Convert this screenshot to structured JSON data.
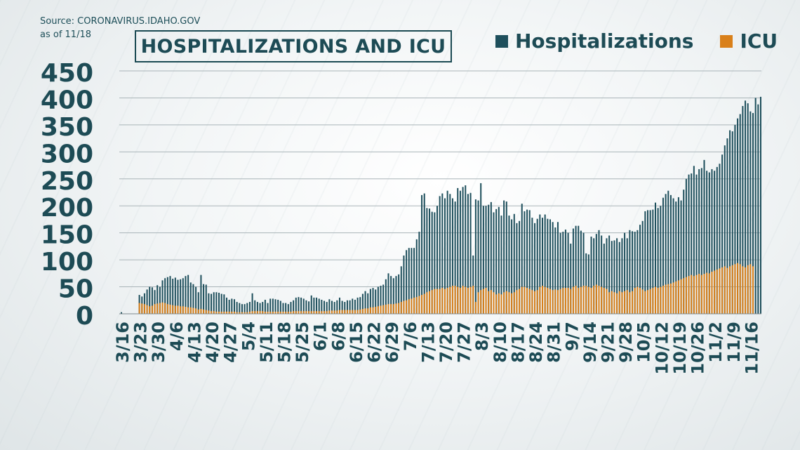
{
  "source": {
    "line1": "Source: CORONAVIRUS.IDAHO.GOV",
    "line2": "as of 11/18"
  },
  "colors": {
    "hospitalizations": "#1e4f5c",
    "icu": "#d9801a",
    "grid": "#a9b4b8",
    "axis_text": "#1d4b55"
  },
  "chart_data": {
    "type": "bar",
    "title": "HOSPITALIZATIONS AND ICU",
    "legend_position": "top-right",
    "grid": true,
    "ylim": [
      0,
      450
    ],
    "yticks": [
      0,
      50,
      100,
      150,
      200,
      250,
      300,
      350,
      400,
      450
    ],
    "xtick_labels": [
      "3/16",
      "3/23",
      "3/30",
      "4/6",
      "4/13",
      "4/20",
      "4/27",
      "5/4",
      "5/11",
      "5/18",
      "5/25",
      "6/1",
      "6/8",
      "6/15",
      "6/22",
      "6/29",
      "7/6",
      "7/13",
      "7/20",
      "7/27",
      "8/3",
      "8/10",
      "8/17",
      "8/24",
      "8/31",
      "9/7",
      "9/14",
      "9/21",
      "9/28",
      "10/5",
      "10/12",
      "10/19",
      "10/26",
      "11/2",
      "11/9",
      "11/16"
    ],
    "start_date": "3/16",
    "end_date": "11/17",
    "series": [
      {
        "name": "Hospitalizations",
        "values": [
          3,
          0,
          0,
          0,
          0,
          0,
          0,
          35,
          32,
          38,
          45,
          50,
          49,
          44,
          53,
          50,
          62,
          66,
          68,
          70,
          65,
          67,
          63,
          64,
          66,
          70,
          72,
          58,
          55,
          50,
          40,
          72,
          55,
          54,
          38,
          37,
          40,
          40,
          39,
          37,
          36,
          30,
          26,
          28,
          27,
          22,
          20,
          18,
          18,
          20,
          22,
          38,
          25,
          22,
          20,
          22,
          26,
          20,
          28,
          28,
          27,
          26,
          24,
          20,
          20,
          18,
          22,
          25,
          30,
          31,
          30,
          28,
          25,
          23,
          34,
          30,
          30,
          28,
          26,
          24,
          22,
          27,
          24,
          22,
          25,
          30,
          24,
          22,
          25,
          25,
          28,
          26,
          30,
          31,
          37,
          42,
          38,
          46,
          48,
          45,
          50,
          52,
          54,
          64,
          75,
          70,
          66,
          70,
          73,
          88,
          108,
          118,
          122,
          122,
          122,
          138,
          152,
          220,
          223,
          196,
          195,
          189,
          188,
          200,
          218,
          223,
          214,
          228,
          222,
          214,
          208,
          233,
          228,
          235,
          238,
          222,
          224,
          108,
          212,
          210,
          242,
          200,
          200,
          202,
          207,
          188,
          194,
          198,
          182,
          210,
          208,
          182,
          175,
          185,
          168,
          172,
          204,
          190,
          193,
          192,
          178,
          168,
          176,
          184,
          178,
          184,
          176,
          175,
          170,
          160,
          170,
          150,
          152,
          156,
          150,
          130,
          158,
          163,
          163,
          154,
          150,
          112,
          110,
          143,
          140,
          148,
          155,
          145,
          130,
          140,
          145,
          135,
          136,
          140,
          133,
          140,
          150,
          140,
          155,
          153,
          152,
          155,
          165,
          172,
          190,
          192,
          192,
          193,
          206,
          196,
          200,
          215,
          222,
          228,
          220,
          214,
          208,
          216,
          210,
          230,
          250,
          258,
          260,
          274,
          258,
          268,
          270,
          285,
          265,
          262,
          268,
          265,
          272,
          278,
          295,
          312,
          325,
          340,
          338,
          350,
          362,
          370,
          385,
          395,
          390,
          375,
          372,
          400,
          388,
          402
        ]
      },
      {
        "name": "ICU",
        "values": [
          0,
          0,
          0,
          0,
          0,
          0,
          0,
          20,
          19,
          18,
          16,
          14,
          15,
          18,
          19,
          20,
          21,
          20,
          18,
          17,
          16,
          15,
          15,
          14,
          14,
          13,
          12,
          12,
          11,
          10,
          8,
          9,
          8,
          7,
          6,
          5,
          5,
          4,
          4,
          4,
          4,
          4,
          4,
          4,
          4,
          3,
          3,
          3,
          3,
          3,
          4,
          5,
          5,
          5,
          5,
          5,
          4,
          4,
          4,
          4,
          4,
          4,
          4,
          4,
          4,
          4,
          4,
          5,
          5,
          5,
          5,
          5,
          5,
          5,
          5,
          5,
          5,
          5,
          5,
          5,
          5,
          6,
          6,
          6,
          6,
          7,
          7,
          7,
          7,
          7,
          7,
          7,
          7,
          8,
          9,
          10,
          10,
          12,
          12,
          13,
          14,
          15,
          16,
          17,
          18,
          18,
          18,
          19,
          20,
          22,
          24,
          25,
          27,
          28,
          30,
          31,
          33,
          35,
          37,
          40,
          42,
          44,
          46,
          46,
          46,
          48,
          46,
          48,
          50,
          52,
          52,
          50,
          48,
          52,
          50,
          48,
          50,
          52,
          22,
          40,
          44,
          46,
          48,
          42,
          44,
          40,
          36,
          38,
          36,
          40,
          42,
          40,
          38,
          40,
          44,
          46,
          50,
          50,
          48,
          46,
          44,
          42,
          44,
          50,
          52,
          50,
          48,
          46,
          44,
          45,
          44,
          46,
          48,
          48,
          48,
          46,
          50,
          52,
          48,
          50,
          52,
          52,
          50,
          48,
          52,
          54,
          52,
          50,
          48,
          46,
          40,
          42,
          40,
          38,
          42,
          40,
          42,
          44,
          40,
          42,
          48,
          50,
          48,
          45,
          42,
          44,
          46,
          48,
          50,
          48,
          50,
          52,
          54,
          55,
          56,
          58,
          60,
          62,
          64,
          66,
          68,
          70,
          72,
          70,
          72,
          74,
          72,
          74,
          76,
          75,
          78,
          80,
          82,
          84,
          86,
          88,
          85,
          88,
          90,
          92,
          94,
          92,
          88,
          86,
          90,
          92,
          88
        ]
      }
    ]
  }
}
